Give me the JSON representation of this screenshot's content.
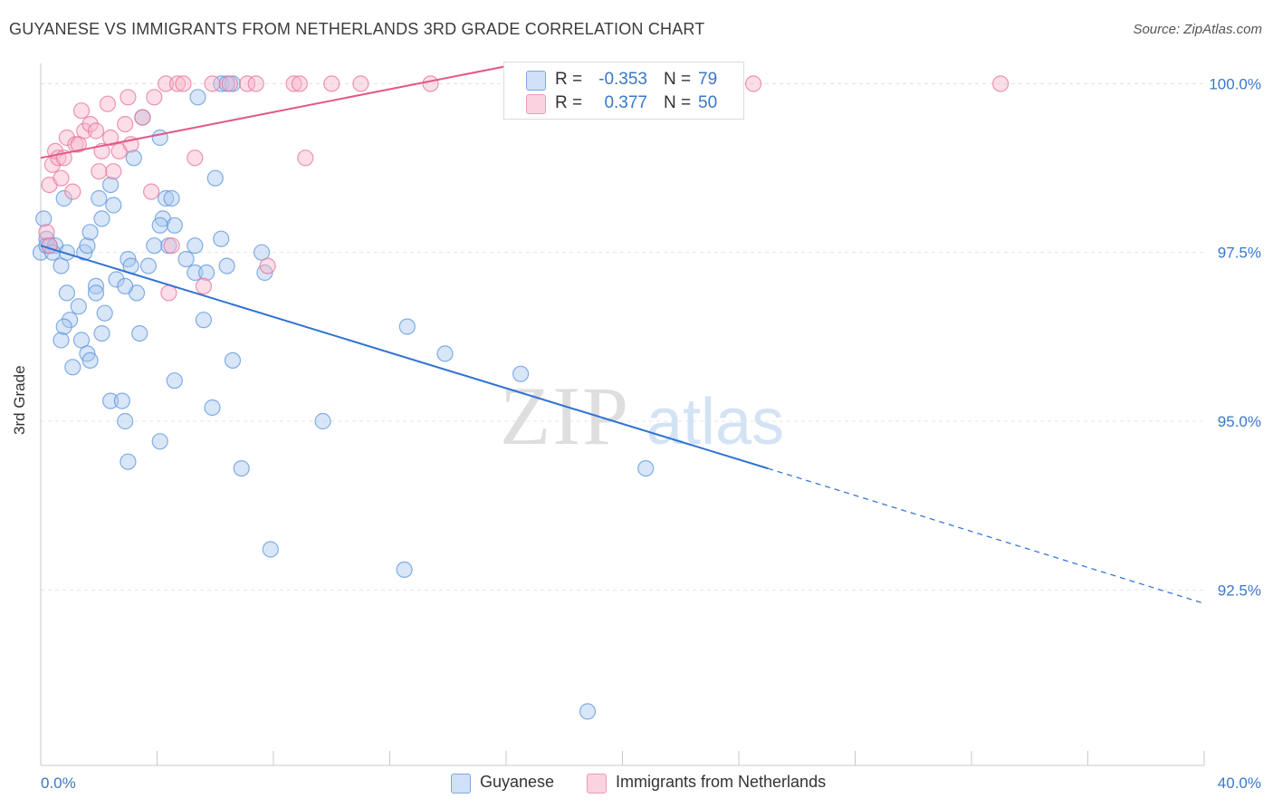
{
  "header": {
    "title": "GUYANESE VS IMMIGRANTS FROM NETHERLANDS 3RD GRADE CORRELATION CHART",
    "source": "Source: ZipAtlas.com"
  },
  "watermark": {
    "zip": "ZIP",
    "atlas": "atlas"
  },
  "legend_top": {
    "rows": [
      {
        "r_label": "R =",
        "r_value": "-0.353",
        "n_label": "N =",
        "n_value": "79",
        "color": "#a9c8f0"
      },
      {
        "r_label": "R =",
        "r_value": "0.377",
        "n_label": "N =",
        "n_value": "50",
        "color": "#f7b6c9"
      }
    ]
  },
  "legend_bottom": {
    "items": [
      {
        "label": "Guyanese",
        "color": "#a9c8f0"
      },
      {
        "label": "Immigrants from Netherlands",
        "color": "#f7b6c9"
      }
    ]
  },
  "chart_data": {
    "type": "scatter",
    "title": "GUYANESE VS IMMIGRANTS FROM NETHERLANDS 3RD GRADE CORRELATION CHART",
    "ylabel": "3rd Grade",
    "xlim": [
      0,
      40
    ],
    "ylim": [
      89.9,
      100.3
    ],
    "x_tick_labels": [
      "0.0%",
      "40.0%"
    ],
    "y_ticks": [
      92.5,
      95.0,
      97.5,
      100.0
    ],
    "y_tick_labels": [
      "92.5%",
      "95.0%",
      "97.5%",
      "100.0%"
    ],
    "grid": true,
    "legend_position": "top-center",
    "series": [
      {
        "name": "Guyanese",
        "color": "#5b95dc",
        "fill": "#a9c8f0",
        "r": -0.353,
        "n": 79,
        "trend": {
          "x_start": 0.0,
          "y_start": 97.6,
          "x_solid_end": 25.0,
          "y_solid_end": 94.3,
          "x_end": 40.0,
          "y_end": 92.3
        },
        "points": [
          [
            0.0,
            97.5
          ],
          [
            0.1,
            98.0
          ],
          [
            0.2,
            97.7
          ],
          [
            0.2,
            97.6
          ],
          [
            0.3,
            97.6
          ],
          [
            0.5,
            97.6
          ],
          [
            0.7,
            97.3
          ],
          [
            0.9,
            97.5
          ],
          [
            0.9,
            96.9
          ],
          [
            1.0,
            96.5
          ],
          [
            0.7,
            96.2
          ],
          [
            0.8,
            96.4
          ],
          [
            1.1,
            95.8
          ],
          [
            1.3,
            96.7
          ],
          [
            1.4,
            96.2
          ],
          [
            1.6,
            96.0
          ],
          [
            1.7,
            95.9
          ],
          [
            1.5,
            97.5
          ],
          [
            1.6,
            97.6
          ],
          [
            1.9,
            97.0
          ],
          [
            1.9,
            96.9
          ],
          [
            2.1,
            96.3
          ],
          [
            2.2,
            96.6
          ],
          [
            2.4,
            95.3
          ],
          [
            2.6,
            97.1
          ],
          [
            2.8,
            95.3
          ],
          [
            2.9,
            95.0
          ],
          [
            3.0,
            94.4
          ],
          [
            3.0,
            97.4
          ],
          [
            3.1,
            97.3
          ],
          [
            3.3,
            96.9
          ],
          [
            3.4,
            96.3
          ],
          [
            3.5,
            99.5
          ],
          [
            3.7,
            97.3
          ],
          [
            3.9,
            97.6
          ],
          [
            4.1,
            94.7
          ],
          [
            4.2,
            98.0
          ],
          [
            4.3,
            98.3
          ],
          [
            4.4,
            97.6
          ],
          [
            4.6,
            97.9
          ],
          [
            4.5,
            98.3
          ],
          [
            4.6,
            95.6
          ],
          [
            5.3,
            97.6
          ],
          [
            5.3,
            97.2
          ],
          [
            5.7,
            97.2
          ],
          [
            5.6,
            96.5
          ],
          [
            5.9,
            95.2
          ],
          [
            6.2,
            97.7
          ],
          [
            6.4,
            97.3
          ],
          [
            6.6,
            95.9
          ],
          [
            6.9,
            94.3
          ],
          [
            7.6,
            97.5
          ],
          [
            7.7,
            97.2
          ],
          [
            7.9,
            93.1
          ],
          [
            9.7,
            95.0
          ],
          [
            12.5,
            92.8
          ],
          [
            12.6,
            96.4
          ],
          [
            13.9,
            96.0
          ],
          [
            16.5,
            95.7
          ],
          [
            18.8,
            90.7
          ],
          [
            20.8,
            94.3
          ],
          [
            0.8,
            98.3
          ],
          [
            2.0,
            98.3
          ],
          [
            2.5,
            98.2
          ],
          [
            2.4,
            98.5
          ],
          [
            2.1,
            98.0
          ],
          [
            3.2,
            98.9
          ],
          [
            4.1,
            99.2
          ],
          [
            5.4,
            99.8
          ],
          [
            6.0,
            98.6
          ],
          [
            6.2,
            100.0
          ],
          [
            6.6,
            100.0
          ],
          [
            16.3,
            100.0
          ],
          [
            1.7,
            97.8
          ],
          [
            2.9,
            97.0
          ],
          [
            5.0,
            97.4
          ],
          [
            0.4,
            97.5
          ],
          [
            6.4,
            100.0
          ],
          [
            4.1,
            97.9
          ]
        ]
      },
      {
        "name": "Immigrants from Netherlands",
        "color": "#e8739b",
        "fill": "#f7b6c9",
        "r": 0.377,
        "n": 50,
        "trend": {
          "x_start": 0.0,
          "y_start": 98.9,
          "x_end": 16.5,
          "y_end": 100.3
        },
        "points": [
          [
            0.2,
            97.8
          ],
          [
            0.3,
            98.5
          ],
          [
            0.4,
            98.8
          ],
          [
            0.5,
            99.0
          ],
          [
            0.6,
            98.9
          ],
          [
            0.7,
            98.6
          ],
          [
            0.8,
            98.9
          ],
          [
            0.9,
            99.2
          ],
          [
            1.1,
            98.4
          ],
          [
            1.2,
            99.1
          ],
          [
            1.4,
            99.6
          ],
          [
            1.5,
            99.3
          ],
          [
            1.7,
            99.4
          ],
          [
            1.9,
            99.3
          ],
          [
            2.0,
            98.7
          ],
          [
            2.1,
            99.0
          ],
          [
            2.3,
            99.7
          ],
          [
            2.4,
            99.2
          ],
          [
            2.5,
            98.7
          ],
          [
            2.7,
            99.0
          ],
          [
            2.9,
            99.4
          ],
          [
            3.0,
            99.8
          ],
          [
            3.1,
            99.1
          ],
          [
            3.5,
            99.5
          ],
          [
            3.8,
            98.4
          ],
          [
            3.9,
            99.8
          ],
          [
            4.3,
            100.0
          ],
          [
            4.5,
            97.6
          ],
          [
            4.7,
            100.0
          ],
          [
            4.9,
            100.0
          ],
          [
            5.3,
            98.9
          ],
          [
            5.6,
            97.0
          ],
          [
            5.9,
            100.0
          ],
          [
            6.5,
            100.0
          ],
          [
            7.1,
            100.0
          ],
          [
            7.4,
            100.0
          ],
          [
            7.8,
            97.3
          ],
          [
            8.7,
            100.0
          ],
          [
            8.9,
            100.0
          ],
          [
            9.1,
            98.9
          ],
          [
            10.0,
            100.0
          ],
          [
            11.0,
            100.0
          ],
          [
            13.4,
            100.0
          ],
          [
            16.9,
            100.0
          ],
          [
            22.0,
            100.0
          ],
          [
            24.5,
            100.0
          ],
          [
            33.0,
            100.0
          ],
          [
            1.3,
            99.1
          ],
          [
            0.3,
            97.6
          ],
          [
            4.4,
            96.9
          ]
        ]
      }
    ]
  }
}
